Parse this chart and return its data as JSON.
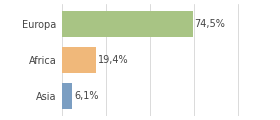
{
  "categories": [
    "Europa",
    "Africa",
    "Asia"
  ],
  "values": [
    74.5,
    19.4,
    6.1
  ],
  "bar_colors": [
    "#a8c484",
    "#f0b87a",
    "#7b9ec2"
  ],
  "labels": [
    "74,5%",
    "19,4%",
    "6,1%"
  ],
  "background_color": "#ffffff",
  "xlim": [
    0,
    105
  ],
  "bar_height": 0.72,
  "label_fontsize": 7.0,
  "tick_fontsize": 7.0,
  "grid_color": "#cccccc",
  "grid_linewidth": 0.5,
  "xticks": [
    0,
    25,
    50,
    75,
    100
  ]
}
